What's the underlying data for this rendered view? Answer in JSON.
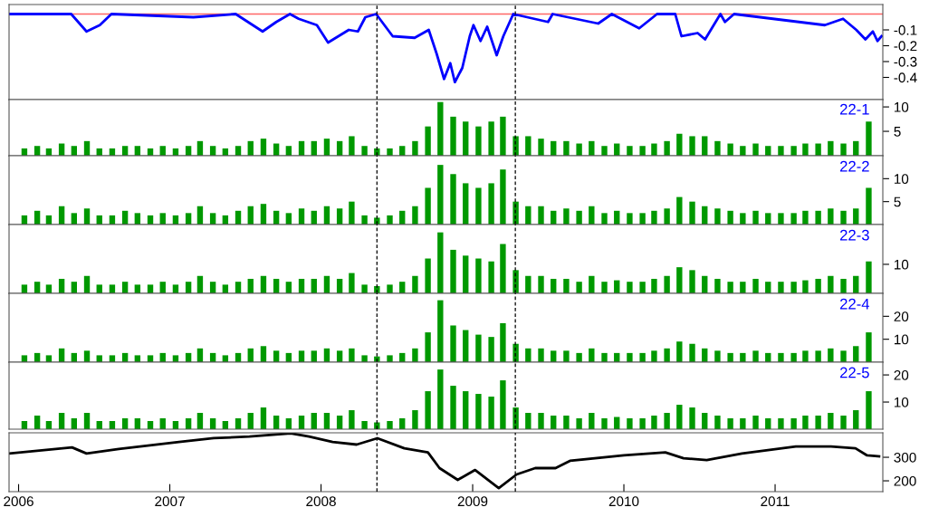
{
  "chart_data": [
    {
      "type": "line",
      "x": [
        "2005-12-09",
        "2006-05-08",
        "2006-06-14",
        "2006-07-16",
        "2006-08-13",
        "2007-02-27",
        "2007-06-09",
        "2007-08-13",
        "2007-09-15",
        "2007-10-18",
        "2007-11-08",
        "2007-12-22",
        "2008-01-18",
        "2008-03-08",
        "2008-03-30",
        "2008-04-17",
        "2008-05-13",
        "2008-06-22",
        "2008-08-14",
        "2008-09-17",
        "2008-10-06",
        "2008-10-24",
        "2008-11-08",
        "2008-11-19",
        "2008-12-07",
        "2008-12-25",
        "2009-01-03",
        "2009-01-20",
        "2009-02-05",
        "2009-02-28",
        "2009-03-16",
        "2009-04-09",
        "2009-07-02",
        "2009-07-13",
        "2009-10-31",
        "2009-12-03",
        "2010-02-07",
        "2010-03-22",
        "2010-05-05",
        "2010-05-20",
        "2010-06-28",
        "2010-07-16",
        "2010-08-22",
        "2010-09-02",
        "2010-09-24",
        "2011-05-01",
        "2011-06-14",
        "2011-07-16",
        "2011-08-07",
        "2011-08-25",
        "2011-09-05",
        "2011-09-15"
      ],
      "series": [
        {
          "color": "#0000ff",
          "values": [
            0,
            0,
            -0.11,
            -0.07,
            0,
            -0.02,
            0,
            -0.11,
            -0.05,
            0,
            -0.03,
            -0.07,
            -0.18,
            -0.1,
            -0.11,
            -0.02,
            0,
            -0.14,
            -0.15,
            -0.1,
            -0.25,
            -0.41,
            -0.31,
            -0.43,
            -0.34,
            -0.14,
            -0.07,
            -0.17,
            -0.08,
            -0.26,
            -0.14,
            0,
            -0.05,
            0,
            -0.06,
            0,
            -0.09,
            0,
            0,
            -0.14,
            -0.12,
            -0.16,
            0,
            -0.05,
            0,
            -0.07,
            -0.03,
            -0.1,
            -0.16,
            -0.11,
            -0.17,
            -0.14
          ]
        }
      ],
      "xlim": [
        "2005-12-09",
        "2011-09-18"
      ],
      "ylim": [
        -0.54,
        0.06
      ],
      "yticks": [
        {
          "value": -0.1,
          "label": "-0.1"
        },
        {
          "value": -0.2,
          "label": "-0.2"
        },
        {
          "value": -0.3,
          "label": "-0.3"
        },
        {
          "value": -0.4,
          "label": "-0.4"
        }
      ],
      "tick_labels": "y",
      "ref_lines": [
        {
          "axis": "y",
          "value": 0,
          "color": "#ff6666",
          "line_style": "solid"
        },
        {
          "axis": "x",
          "value": "2008-05-15",
          "color": "#000000",
          "line_style": "dashed"
        },
        {
          "axis": "x",
          "value": "2009-04-14",
          "color": "#000000",
          "line_style": "dashed"
        }
      ]
    },
    {
      "type": "bar",
      "title": "22-1",
      "color": "#009900",
      "x": [
        "2006-01-15",
        "2006-02-15",
        "2006-03-15",
        "2006-04-15",
        "2006-05-15",
        "2006-06-15",
        "2006-07-15",
        "2006-08-15",
        "2006-09-15",
        "2006-10-15",
        "2006-11-15",
        "2006-12-15",
        "2007-01-15",
        "2007-02-15",
        "2007-03-15",
        "2007-04-15",
        "2007-05-15",
        "2007-06-15",
        "2007-07-15",
        "2007-08-15",
        "2007-09-15",
        "2007-10-15",
        "2007-11-15",
        "2007-12-15",
        "2008-01-15",
        "2008-02-15",
        "2008-03-15",
        "2008-04-15",
        "2008-05-15",
        "2008-06-15",
        "2008-07-15",
        "2008-08-15",
        "2008-09-15",
        "2008-10-15",
        "2008-11-15",
        "2008-12-15",
        "2009-01-15",
        "2009-02-15",
        "2009-03-15",
        "2009-04-15",
        "2009-05-15",
        "2009-06-15",
        "2009-07-15",
        "2009-08-15",
        "2009-09-15",
        "2009-10-15",
        "2009-11-15",
        "2009-12-15",
        "2010-01-15",
        "2010-02-15",
        "2010-03-15",
        "2010-04-15",
        "2010-05-15",
        "2010-06-15",
        "2010-07-15",
        "2010-08-15",
        "2010-09-15",
        "2010-10-15",
        "2010-11-15",
        "2010-12-15",
        "2011-01-15",
        "2011-02-15",
        "2011-03-15",
        "2011-04-15",
        "2011-05-15",
        "2011-06-15",
        "2011-07-15",
        "2011-08-15"
      ],
      "values": [
        1.5,
        2,
        1.5,
        2.5,
        2,
        3,
        1.5,
        1.5,
        2,
        2,
        1.5,
        2,
        1.5,
        2,
        3,
        2,
        1.5,
        2,
        3,
        3.5,
        2.5,
        2,
        3,
        3,
        3.5,
        3,
        4,
        2,
        1.5,
        1.5,
        2,
        3,
        6,
        11,
        8,
        7,
        6,
        7,
        8,
        4,
        4,
        3.5,
        3,
        3,
        2.5,
        3,
        2,
        2.5,
        2,
        2,
        2.5,
        3,
        4.5,
        4,
        4,
        3,
        2.5,
        2,
        2.5,
        2,
        2,
        2,
        2.5,
        2.5,
        3,
        2.5,
        3,
        7
      ],
      "xlim": [
        "2005-12-09",
        "2011-09-18"
      ],
      "ylim": [
        0,
        11.5
      ],
      "yticks": [
        5,
        10
      ],
      "tick_labels": "y",
      "ref_lines": [
        {
          "axis": "x",
          "value": "2008-05-15",
          "color": "#000000",
          "line_style": "dashed"
        },
        {
          "axis": "x",
          "value": "2009-04-14",
          "color": "#000000",
          "line_style": "dashed"
        }
      ]
    },
    {
      "type": "bar",
      "title": "22-2",
      "color": "#009900",
      "x": [
        "2006-01-15",
        "2006-02-15",
        "2006-03-15",
        "2006-04-15",
        "2006-05-15",
        "2006-06-15",
        "2006-07-15",
        "2006-08-15",
        "2006-09-15",
        "2006-10-15",
        "2006-11-15",
        "2006-12-15",
        "2007-01-15",
        "2007-02-15",
        "2007-03-15",
        "2007-04-15",
        "2007-05-15",
        "2007-06-15",
        "2007-07-15",
        "2007-08-15",
        "2007-09-15",
        "2007-10-15",
        "2007-11-15",
        "2007-12-15",
        "2008-01-15",
        "2008-02-15",
        "2008-03-15",
        "2008-04-15",
        "2008-05-15",
        "2008-06-15",
        "2008-07-15",
        "2008-08-15",
        "2008-09-15",
        "2008-10-15",
        "2008-11-15",
        "2008-12-15",
        "2009-01-15",
        "2009-02-15",
        "2009-03-15",
        "2009-04-15",
        "2009-05-15",
        "2009-06-15",
        "2009-07-15",
        "2009-08-15",
        "2009-09-15",
        "2009-10-15",
        "2009-11-15",
        "2009-12-15",
        "2010-01-15",
        "2010-02-15",
        "2010-03-15",
        "2010-04-15",
        "2010-05-15",
        "2010-06-15",
        "2010-07-15",
        "2010-08-15",
        "2010-09-15",
        "2010-10-15",
        "2010-11-15",
        "2010-12-15",
        "2011-01-15",
        "2011-02-15",
        "2011-03-15",
        "2011-04-15",
        "2011-05-15",
        "2011-06-15",
        "2011-07-15",
        "2011-08-15"
      ],
      "values": [
        2,
        3,
        2,
        4,
        2.5,
        3.5,
        2,
        2,
        3,
        2.5,
        2,
        2.5,
        2,
        2.5,
        4,
        2.5,
        2,
        3,
        4,
        4.5,
        3,
        2.5,
        3.5,
        3,
        4,
        3.5,
        5,
        2,
        1.5,
        2,
        3,
        4,
        8,
        13,
        11,
        9,
        8,
        9,
        12,
        5,
        4,
        4,
        3,
        3.5,
        3,
        4,
        2.5,
        3,
        2.5,
        2.5,
        3,
        3.5,
        6,
        5,
        4,
        3.5,
        3,
        2.5,
        3,
        2.5,
        2.5,
        2.5,
        3,
        3,
        3.5,
        3,
        3.5,
        8
      ],
      "xlim": [
        "2005-12-09",
        "2011-09-18"
      ],
      "ylim": [
        0,
        15
      ],
      "yticks": [
        5,
        10
      ],
      "tick_labels": "y",
      "ref_lines": [
        {
          "axis": "x",
          "value": "2008-05-15",
          "color": "#000000",
          "line_style": "dashed"
        },
        {
          "axis": "x",
          "value": "2009-04-14",
          "color": "#000000",
          "line_style": "dashed"
        }
      ]
    },
    {
      "type": "bar",
      "title": "22-3",
      "color": "#009900",
      "x": [
        "2006-01-15",
        "2006-02-15",
        "2006-03-15",
        "2006-04-15",
        "2006-05-15",
        "2006-06-15",
        "2006-07-15",
        "2006-08-15",
        "2006-09-15",
        "2006-10-15",
        "2006-11-15",
        "2006-12-15",
        "2007-01-15",
        "2007-02-15",
        "2007-03-15",
        "2007-04-15",
        "2007-05-15",
        "2007-06-15",
        "2007-07-15",
        "2007-08-15",
        "2007-09-15",
        "2007-10-15",
        "2007-11-15",
        "2007-12-15",
        "2008-01-15",
        "2008-02-15",
        "2008-03-15",
        "2008-04-15",
        "2008-05-15",
        "2008-06-15",
        "2008-07-15",
        "2008-08-15",
        "2008-09-15",
        "2008-10-15",
        "2008-11-15",
        "2008-12-15",
        "2009-01-15",
        "2009-02-15",
        "2009-03-15",
        "2009-04-15",
        "2009-05-15",
        "2009-06-15",
        "2009-07-15",
        "2009-08-15",
        "2009-09-15",
        "2009-10-15",
        "2009-11-15",
        "2009-12-15",
        "2010-01-15",
        "2010-02-15",
        "2010-03-15",
        "2010-04-15",
        "2010-05-15",
        "2010-06-15",
        "2010-07-15",
        "2010-08-15",
        "2010-09-15",
        "2010-10-15",
        "2010-11-15",
        "2010-12-15",
        "2011-01-15",
        "2011-02-15",
        "2011-03-15",
        "2011-04-15",
        "2011-05-15",
        "2011-06-15",
        "2011-07-15",
        "2011-08-15"
      ],
      "values": [
        3,
        4,
        3,
        5,
        4,
        6,
        3,
        3,
        4,
        3,
        3,
        4,
        3,
        4,
        6,
        4,
        3,
        4,
        5,
        6,
        5,
        4,
        5,
        5,
        6,
        5,
        7,
        3,
        2.5,
        3,
        4,
        6,
        12,
        21,
        15,
        13,
        12,
        11,
        17,
        8,
        6,
        6,
        5,
        5,
        4,
        6,
        4,
        4.5,
        4,
        4,
        5,
        6,
        9,
        8,
        6,
        5,
        4,
        4,
        5,
        4,
        4,
        4,
        4.5,
        5,
        6,
        5,
        6,
        11
      ],
      "xlim": [
        "2005-12-09",
        "2011-09-18"
      ],
      "ylim": [
        0,
        23.7
      ],
      "yticks": [
        10
      ],
      "tick_labels": "y",
      "ref_lines": [
        {
          "axis": "x",
          "value": "2008-05-15",
          "color": "#000000",
          "line_style": "dashed"
        },
        {
          "axis": "x",
          "value": "2009-04-14",
          "color": "#000000",
          "line_style": "dashed"
        }
      ]
    },
    {
      "type": "bar",
      "title": "22-4",
      "color": "#009900",
      "x": [
        "2006-01-15",
        "2006-02-15",
        "2006-03-15",
        "2006-04-15",
        "2006-05-15",
        "2006-06-15",
        "2006-07-15",
        "2006-08-15",
        "2006-09-15",
        "2006-10-15",
        "2006-11-15",
        "2006-12-15",
        "2007-01-15",
        "2007-02-15",
        "2007-03-15",
        "2007-04-15",
        "2007-05-15",
        "2007-06-15",
        "2007-07-15",
        "2007-08-15",
        "2007-09-15",
        "2007-10-15",
        "2007-11-15",
        "2007-12-15",
        "2008-01-15",
        "2008-02-15",
        "2008-03-15",
        "2008-04-15",
        "2008-05-15",
        "2008-06-15",
        "2008-07-15",
        "2008-08-15",
        "2008-09-15",
        "2008-10-15",
        "2008-11-15",
        "2008-12-15",
        "2009-01-15",
        "2009-02-15",
        "2009-03-15",
        "2009-04-15",
        "2009-05-15",
        "2009-06-15",
        "2009-07-15",
        "2009-08-15",
        "2009-09-15",
        "2009-10-15",
        "2009-11-15",
        "2009-12-15",
        "2010-01-15",
        "2010-02-15",
        "2010-03-15",
        "2010-04-15",
        "2010-05-15",
        "2010-06-15",
        "2010-07-15",
        "2010-08-15",
        "2010-09-15",
        "2010-10-15",
        "2010-11-15",
        "2010-12-15",
        "2011-01-15",
        "2011-02-15",
        "2011-03-15",
        "2011-04-15",
        "2011-05-15",
        "2011-06-15",
        "2011-07-15",
        "2011-08-15"
      ],
      "values": [
        3,
        4,
        3,
        6,
        4,
        5,
        3,
        3,
        4,
        3,
        3,
        4,
        3,
        4,
        6,
        4,
        3,
        4,
        6,
        7,
        5,
        4,
        5,
        5,
        6,
        5,
        6,
        3,
        2.5,
        3,
        4,
        6,
        13,
        27,
        16,
        14,
        12,
        11,
        17,
        8,
        6,
        6,
        5,
        5,
        4,
        6,
        4,
        4,
        4,
        4,
        5,
        6,
        9,
        8,
        6,
        5,
        4,
        4,
        5,
        4,
        4,
        4,
        5,
        5,
        6,
        5,
        7,
        13
      ],
      "xlim": [
        "2005-12-09",
        "2011-09-18"
      ],
      "ylim": [
        0,
        30
      ],
      "yticks": [
        10,
        20
      ],
      "tick_labels": "y",
      "ref_lines": [
        {
          "axis": "x",
          "value": "2008-05-15",
          "color": "#000000",
          "line_style": "dashed"
        },
        {
          "axis": "x",
          "value": "2009-04-14",
          "color": "#000000",
          "line_style": "dashed"
        }
      ]
    },
    {
      "type": "bar",
      "title": "22-5",
      "color": "#009900",
      "x": [
        "2006-01-15",
        "2006-02-15",
        "2006-03-15",
        "2006-04-15",
        "2006-05-15",
        "2006-06-15",
        "2006-07-15",
        "2006-08-15",
        "2006-09-15",
        "2006-10-15",
        "2006-11-15",
        "2006-12-15",
        "2007-01-15",
        "2007-02-15",
        "2007-03-15",
        "2007-04-15",
        "2007-05-15",
        "2007-06-15",
        "2007-07-15",
        "2007-08-15",
        "2007-09-15",
        "2007-10-15",
        "2007-11-15",
        "2007-12-15",
        "2008-01-15",
        "2008-02-15",
        "2008-03-15",
        "2008-04-15",
        "2008-05-15",
        "2008-06-15",
        "2008-07-15",
        "2008-08-15",
        "2008-09-15",
        "2008-10-15",
        "2008-11-15",
        "2008-12-15",
        "2009-01-15",
        "2009-02-15",
        "2009-03-15",
        "2009-04-15",
        "2009-05-15",
        "2009-06-15",
        "2009-07-15",
        "2009-08-15",
        "2009-09-15",
        "2009-10-15",
        "2009-11-15",
        "2009-12-15",
        "2010-01-15",
        "2010-02-15",
        "2010-03-15",
        "2010-04-15",
        "2010-05-15",
        "2010-06-15",
        "2010-07-15",
        "2010-08-15",
        "2010-09-15",
        "2010-10-15",
        "2010-11-15",
        "2010-12-15",
        "2011-01-15",
        "2011-02-15",
        "2011-03-15",
        "2011-04-15",
        "2011-05-15",
        "2011-06-15",
        "2011-07-15",
        "2011-08-15"
      ],
      "values": [
        3,
        5,
        3,
        6,
        4,
        6,
        3,
        3,
        4,
        4,
        3,
        4,
        3,
        4,
        6,
        4,
        3,
        4,
        6,
        8,
        5,
        4,
        5,
        6,
        6,
        5,
        7,
        3,
        2.5,
        3,
        4,
        7,
        14,
        22,
        16,
        14,
        13,
        12,
        18,
        8,
        6,
        6,
        5,
        5,
        4,
        6,
        4,
        4.5,
        4,
        4,
        5,
        6,
        9,
        8,
        6,
        5,
        4,
        4,
        5,
        4,
        4,
        4,
        5,
        5,
        6,
        5,
        7,
        14
      ],
      "xlim": [
        "2005-12-09",
        "2011-09-18"
      ],
      "ylim": [
        0,
        24.7
      ],
      "yticks": [
        10,
        20
      ],
      "tick_labels": "y",
      "ref_lines": [
        {
          "axis": "x",
          "value": "2008-05-15",
          "color": "#000000",
          "line_style": "dashed"
        },
        {
          "axis": "x",
          "value": "2009-04-14",
          "color": "#000000",
          "line_style": "dashed"
        }
      ]
    },
    {
      "type": "line",
      "x": [
        "2005-12-09",
        "2006-05-10",
        "2006-06-14",
        "2006-08-31",
        "2007-01-23",
        "2007-04-17",
        "2007-07-12",
        "2007-10-20",
        "2007-12-03",
        "2008-01-29",
        "2008-03-27",
        "2008-05-16",
        "2008-07-20",
        "2008-09-15",
        "2008-10-13",
        "2008-11-26",
        "2009-01-07",
        "2009-03-05",
        "2009-04-17",
        "2009-06-01",
        "2009-07-20",
        "2009-08-24",
        "2010-01-01",
        "2010-04-11",
        "2010-05-25",
        "2010-07-20",
        "2010-10-13",
        "2011-02-20",
        "2011-05-16",
        "2011-07-14",
        "2011-08-11",
        "2011-09-09"
      ],
      "series": [
        {
          "color": "#000000",
          "values": [
            316,
            342,
            316,
            335,
            365,
            381,
            388,
            402,
            388,
            365,
            354,
            381,
            338,
            321,
            254,
            204,
            246,
            169,
            227,
            254,
            254,
            285,
            308,
            321,
            296,
            288,
            316,
            346,
            346,
            338,
            308,
            304
          ]
        }
      ],
      "xlim": [
        "2005-12-09",
        "2011-09-18"
      ],
      "ylim": [
        154,
        404
      ],
      "yticks": [
        200,
        300
      ],
      "xticks": [
        {
          "value": "2006-01-01",
          "label": "2006"
        },
        {
          "value": "2007-01-01",
          "label": "2007"
        },
        {
          "value": "2008-01-01",
          "label": "2008"
        },
        {
          "value": "2009-01-01",
          "label": "2009"
        },
        {
          "value": "2010-01-01",
          "label": "2010"
        },
        {
          "value": "2011-01-01",
          "label": "2011"
        }
      ],
      "ref_lines": [
        {
          "axis": "x",
          "value": "2008-05-15",
          "color": "#000000",
          "line_style": "dashed"
        },
        {
          "axis": "x",
          "value": "2009-04-14",
          "color": "#000000",
          "line_style": "dashed"
        }
      ]
    }
  ]
}
